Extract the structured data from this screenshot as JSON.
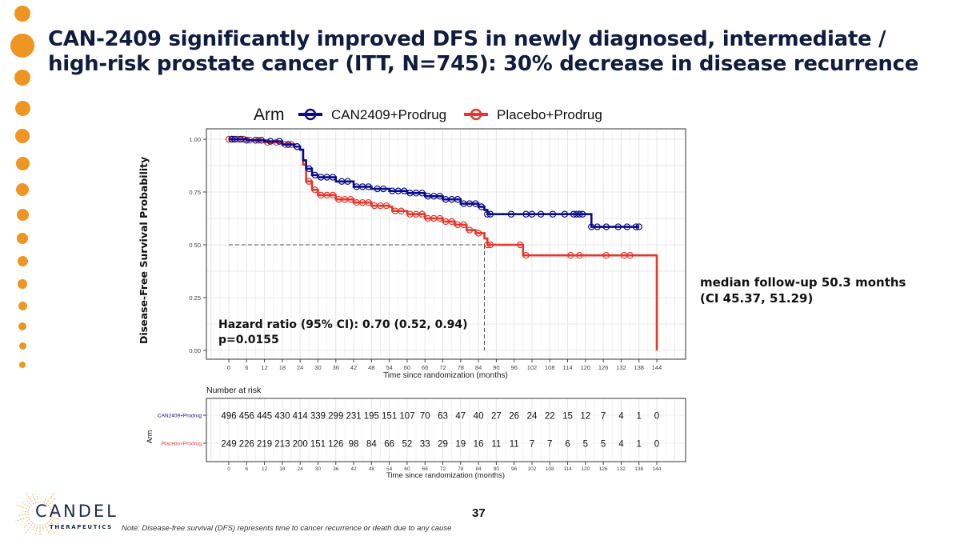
{
  "slide": {
    "title_line1": "CAN-2409 significantly improved DFS in newly diagnosed, intermediate /",
    "title_line2": "high-risk prostate cancer (ITT, N=745): 30% decrease in disease recurrence",
    "y_axis_title": "Disease-Free Survival Probability",
    "annotation_hr": "Hazard ratio (95% CI): 0.70 (0.52, 0.94)",
    "annotation_p": "p=0.0155",
    "followup_line1": "median follow-up 50.3 months",
    "followup_line2": "(CI 45.37, 51.29)",
    "note": "Note: Disease-free survival (DFS)  represents time to cancer recurrence or death due to any cause",
    "page_number": "37",
    "logo_name": "CANDEL",
    "logo_sub": "THERAPEUTICS",
    "accent_color": "#EE9522",
    "title_color": "#0f1c3f"
  },
  "chart_data": [
    {
      "type": "line",
      "subtype": "kaplan-meier",
      "legend_title": "Arm",
      "legend_position": "top",
      "xlabel": "Time since randomization (months)",
      "ylabel": "Disease-Free Survival Probability",
      "xlim": [
        0,
        144
      ],
      "ylim": [
        0,
        1
      ],
      "x_ticks": [
        "0",
        "6",
        "12",
        "18",
        "24",
        "30",
        "36",
        "42",
        "48",
        "54",
        "60",
        "66",
        "72",
        "78",
        "84",
        "90",
        "96",
        "102",
        "108",
        "114",
        "120",
        "126",
        "132",
        "138",
        "144"
      ],
      "y_ticks": [
        "0.00",
        "0.25",
        "0.50",
        "0.75",
        "1.00"
      ],
      "grid": true,
      "median_reference": {
        "y": 0.5,
        "x": 86
      },
      "series": [
        {
          "name": "CAN2409+Prodrug",
          "color": "#0a0a8a",
          "points": [
            [
              0,
              1.0
            ],
            [
              6,
              0.995
            ],
            [
              12,
              0.99
            ],
            [
              18,
              0.975
            ],
            [
              22,
              0.965
            ],
            [
              24,
              0.95
            ],
            [
              25,
              0.9
            ],
            [
              26,
              0.86
            ],
            [
              28,
              0.83
            ],
            [
              30,
              0.82
            ],
            [
              36,
              0.8
            ],
            [
              42,
              0.775
            ],
            [
              48,
              0.765
            ],
            [
              54,
              0.755
            ],
            [
              60,
              0.745
            ],
            [
              66,
              0.73
            ],
            [
              72,
              0.715
            ],
            [
              78,
              0.695
            ],
            [
              84,
              0.68
            ],
            [
              86,
              0.665
            ],
            [
              87,
              0.645
            ],
            [
              120,
              0.645
            ],
            [
              122,
              0.585
            ],
            [
              138,
              0.585
            ]
          ],
          "censor_x": [
            1,
            2,
            4,
            6,
            9,
            11,
            14,
            17,
            20,
            23,
            27,
            29,
            31,
            33,
            35,
            38,
            40,
            43,
            45,
            47,
            50,
            52,
            55,
            57,
            59,
            61,
            63,
            65,
            67,
            69,
            71,
            73,
            75,
            77,
            79,
            81,
            83,
            85,
            87,
            88,
            95,
            100,
            102,
            105,
            109,
            113,
            116,
            117,
            118,
            119,
            122,
            124,
            127,
            131,
            134,
            137,
            138
          ]
        },
        {
          "name": "Placebo+Prodrug",
          "color": "#e8362a",
          "points": [
            [
              0,
              1.0
            ],
            [
              6,
              0.995
            ],
            [
              12,
              0.985
            ],
            [
              18,
              0.975
            ],
            [
              22,
              0.965
            ],
            [
              24,
              0.95
            ],
            [
              25,
              0.88
            ],
            [
              26,
              0.8
            ],
            [
              28,
              0.76
            ],
            [
              30,
              0.735
            ],
            [
              36,
              0.715
            ],
            [
              42,
              0.7
            ],
            [
              48,
              0.685
            ],
            [
              54,
              0.68
            ],
            [
              55,
              0.66
            ],
            [
              60,
              0.645
            ],
            [
              66,
              0.625
            ],
            [
              72,
              0.61
            ],
            [
              76,
              0.595
            ],
            [
              80,
              0.57
            ],
            [
              83,
              0.555
            ],
            [
              86,
              0.53
            ],
            [
              87,
              0.5
            ],
            [
              98,
              0.5
            ],
            [
              99,
              0.45
            ],
            [
              144,
              0.45
            ],
            [
              144,
              0.0
            ]
          ],
          "censor_x": [
            0,
            1,
            3,
            5,
            7,
            10,
            13,
            16,
            19,
            21,
            23,
            27,
            29,
            31,
            33,
            35,
            37,
            39,
            41,
            43,
            45,
            47,
            49,
            51,
            53,
            56,
            58,
            61,
            63,
            65,
            67,
            69,
            71,
            73,
            75,
            77,
            79,
            81,
            84,
            87,
            88,
            98,
            100,
            115,
            118,
            127,
            133,
            135
          ]
        }
      ]
    },
    {
      "type": "table",
      "title": "Number at risk",
      "row_axis_label": "Arm",
      "xlabel": "Time since randomization (months)",
      "columns": [
        "0",
        "6",
        "12",
        "18",
        "24",
        "30",
        "36",
        "42",
        "48",
        "54",
        "60",
        "66",
        "72",
        "78",
        "84",
        "90",
        "96",
        "102",
        "108",
        "114",
        "120",
        "126",
        "132",
        "138",
        "144"
      ],
      "rows": [
        {
          "name": "CAN2409+Prodrug",
          "color": "#0a0a8a",
          "values": [
            "496",
            "456",
            "445",
            "430",
            "414",
            "339",
            "299",
            "231",
            "195",
            "151",
            "107",
            "70",
            "63",
            "47",
            "40",
            "27",
            "26",
            "24",
            "22",
            "15",
            "12",
            "7",
            "4",
            "1",
            "0"
          ]
        },
        {
          "name": "Placebo+Prodrug",
          "color": "#e8362a",
          "values": [
            "249",
            "226",
            "219",
            "213",
            "200",
            "151",
            "126",
            "98",
            "84",
            "66",
            "52",
            "33",
            "29",
            "19",
            "16",
            "11",
            "11",
            "7",
            "7",
            "6",
            "5",
            "5",
            "4",
            "1",
            "0"
          ]
        }
      ]
    }
  ]
}
